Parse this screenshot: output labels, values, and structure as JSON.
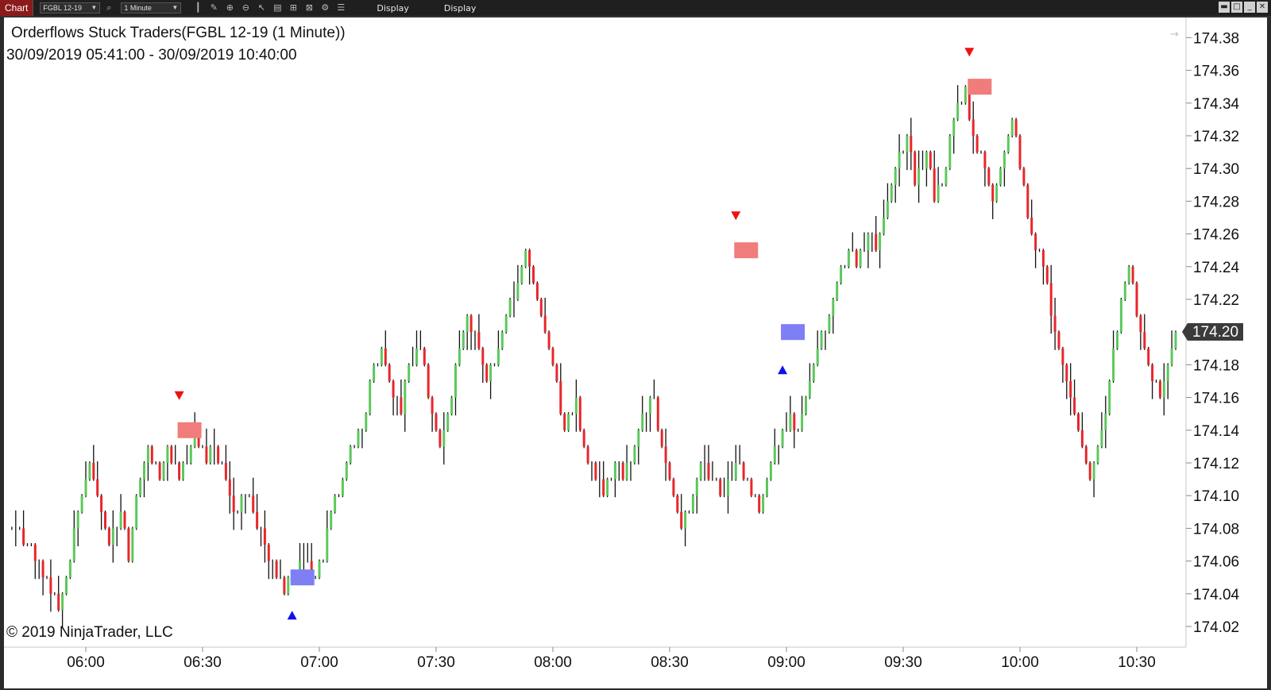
{
  "toolbar": {
    "tab_label": "Chart",
    "instrument": "FGBL 12-19",
    "interval": "1 Minute",
    "display_label_1": "Display",
    "display_label_2": "Display",
    "icons": [
      "bars-icon",
      "draw-icon",
      "zoom-in-icon",
      "zoom-out-icon",
      "pointer-icon",
      "data-box-icon",
      "indicator-icon",
      "strategy-icon",
      "properties-icon",
      "list-icon"
    ],
    "window_buttons": [
      "restore-icon",
      "maximize-icon",
      "minimize-icon",
      "close-icon"
    ]
  },
  "chart": {
    "title": "Orderflows Stuck Traders(FGBL 12-19 (1 Minute))",
    "date_range": "30/09/2019 05:41:00 - 30/09/2019 10:40:00",
    "copyright": "© 2019 NinjaTrader, LLC",
    "current_price": "174.20"
  },
  "chart_data": {
    "type": "bar",
    "subtype": "ohlc-price-bars",
    "instrument": "FGBL 12-19",
    "interval": "1 Minute",
    "x_range": [
      "05:41",
      "10:40"
    ],
    "x_ticks": [
      "06:00",
      "06:30",
      "07:00",
      "07:30",
      "08:00",
      "08:30",
      "09:00",
      "09:30",
      "10:00",
      "10:30"
    ],
    "y_ticks": [
      "174.02",
      "174.04",
      "174.06",
      "174.08",
      "174.10",
      "174.12",
      "174.14",
      "174.16",
      "174.18",
      "174.20",
      "174.22",
      "174.24",
      "174.26",
      "174.28",
      "174.30",
      "174.32",
      "174.34",
      "174.36",
      "174.38"
    ],
    "ylim": [
      174.01,
      174.39
    ],
    "tick_size": 0.01,
    "colors": {
      "up": "#5cc85c",
      "down": "#e8262b",
      "flat": "#111111",
      "sell_signal": "#ee1111",
      "buy_signal": "#1111ee",
      "sell_zone": "#f07c7c",
      "buy_zone": "#7e7ef5"
    },
    "path": [
      [
        341,
        174.08
      ],
      [
        346,
        174.07
      ],
      [
        349,
        174.05
      ],
      [
        353,
        174.03
      ],
      [
        356,
        174.06
      ],
      [
        358,
        174.09
      ],
      [
        361,
        174.12
      ],
      [
        363,
        174.1
      ],
      [
        366,
        174.07
      ],
      [
        369,
        174.09
      ],
      [
        371,
        174.06
      ],
      [
        373,
        174.1
      ],
      [
        376,
        174.13
      ],
      [
        379,
        174.11
      ],
      [
        381,
        174.13
      ],
      [
        384,
        174.11
      ],
      [
        386,
        174.12
      ],
      [
        388,
        174.14
      ],
      [
        391,
        174.12
      ],
      [
        393,
        174.13
      ],
      [
        396,
        174.11
      ],
      [
        398,
        174.09
      ],
      [
        401,
        174.1
      ],
      [
        403,
        174.09
      ],
      [
        406,
        174.07
      ],
      [
        409,
        174.05
      ],
      [
        411,
        174.04
      ],
      [
        413,
        174.05
      ],
      [
        416,
        174.06
      ],
      [
        418,
        174.05
      ],
      [
        421,
        174.06
      ],
      [
        423,
        174.09
      ],
      [
        426,
        174.11
      ],
      [
        428,
        174.13
      ],
      [
        431,
        174.14
      ],
      [
        433,
        174.17
      ],
      [
        436,
        174.19
      ],
      [
        438,
        174.17
      ],
      [
        441,
        174.15
      ],
      [
        443,
        174.18
      ],
      [
        446,
        174.19
      ],
      [
        448,
        174.16
      ],
      [
        451,
        174.13
      ],
      [
        453,
        174.15
      ],
      [
        456,
        174.19
      ],
      [
        458,
        174.21
      ],
      [
        461,
        174.19
      ],
      [
        463,
        174.17
      ],
      [
        466,
        174.19
      ],
      [
        468,
        174.21
      ],
      [
        471,
        174.23
      ],
      [
        473,
        174.25
      ],
      [
        476,
        174.22
      ],
      [
        478,
        174.2
      ],
      [
        481,
        174.17
      ],
      [
        483,
        174.14
      ],
      [
        486,
        174.16
      ],
      [
        488,
        174.13
      ],
      [
        491,
        174.11
      ],
      [
        493,
        174.1
      ],
      [
        496,
        174.12
      ],
      [
        498,
        174.11
      ],
      [
        501,
        174.13
      ],
      [
        503,
        174.15
      ],
      [
        506,
        174.16
      ],
      [
        508,
        174.13
      ],
      [
        511,
        174.1
      ],
      [
        513,
        174.08
      ],
      [
        516,
        174.1
      ],
      [
        518,
        174.12
      ],
      [
        521,
        174.11
      ],
      [
        523,
        174.1
      ],
      [
        526,
        174.11
      ],
      [
        528,
        174.12
      ],
      [
        531,
        174.1
      ],
      [
        533,
        174.09
      ],
      [
        536,
        174.12
      ],
      [
        538,
        174.13
      ],
      [
        541,
        174.15
      ],
      [
        543,
        174.14
      ],
      [
        546,
        174.17
      ],
      [
        548,
        174.19
      ],
      [
        551,
        174.21
      ],
      [
        553,
        174.23
      ],
      [
        556,
        174.25
      ],
      [
        558,
        174.24
      ],
      [
        561,
        174.26
      ],
      [
        563,
        174.25
      ],
      [
        566,
        174.28
      ],
      [
        568,
        174.3
      ],
      [
        571,
        174.32
      ],
      [
        573,
        174.29
      ],
      [
        576,
        174.31
      ],
      [
        578,
        174.28
      ],
      [
        581,
        174.3
      ],
      [
        583,
        174.33
      ],
      [
        586,
        174.35
      ],
      [
        588,
        174.32
      ],
      [
        591,
        174.3
      ],
      [
        593,
        174.28
      ],
      [
        596,
        174.31
      ],
      [
        598,
        174.33
      ],
      [
        601,
        174.29
      ],
      [
        603,
        174.26
      ],
      [
        606,
        174.24
      ],
      [
        608,
        174.21
      ],
      [
        611,
        174.18
      ],
      [
        613,
        174.16
      ],
      [
        616,
        174.13
      ],
      [
        618,
        174.11
      ],
      [
        621,
        174.14
      ],
      [
        623,
        174.17
      ],
      [
        626,
        174.22
      ],
      [
        628,
        174.24
      ],
      [
        631,
        174.2
      ],
      [
        633,
        174.18
      ],
      [
        636,
        174.16
      ],
      [
        638,
        174.18
      ],
      [
        640,
        174.2
      ],
      [
        641,
        174.21
      ]
    ],
    "signals": [
      {
        "type": "sell",
        "time": "06:24",
        "price": 174.14
      },
      {
        "type": "buy",
        "time": "06:53",
        "price": 174.05
      },
      {
        "type": "sell",
        "time": "08:47",
        "price": 174.25
      },
      {
        "type": "buy",
        "time": "08:59",
        "price": 174.2
      },
      {
        "type": "sell",
        "time": "09:47",
        "price": 174.35
      }
    ]
  }
}
